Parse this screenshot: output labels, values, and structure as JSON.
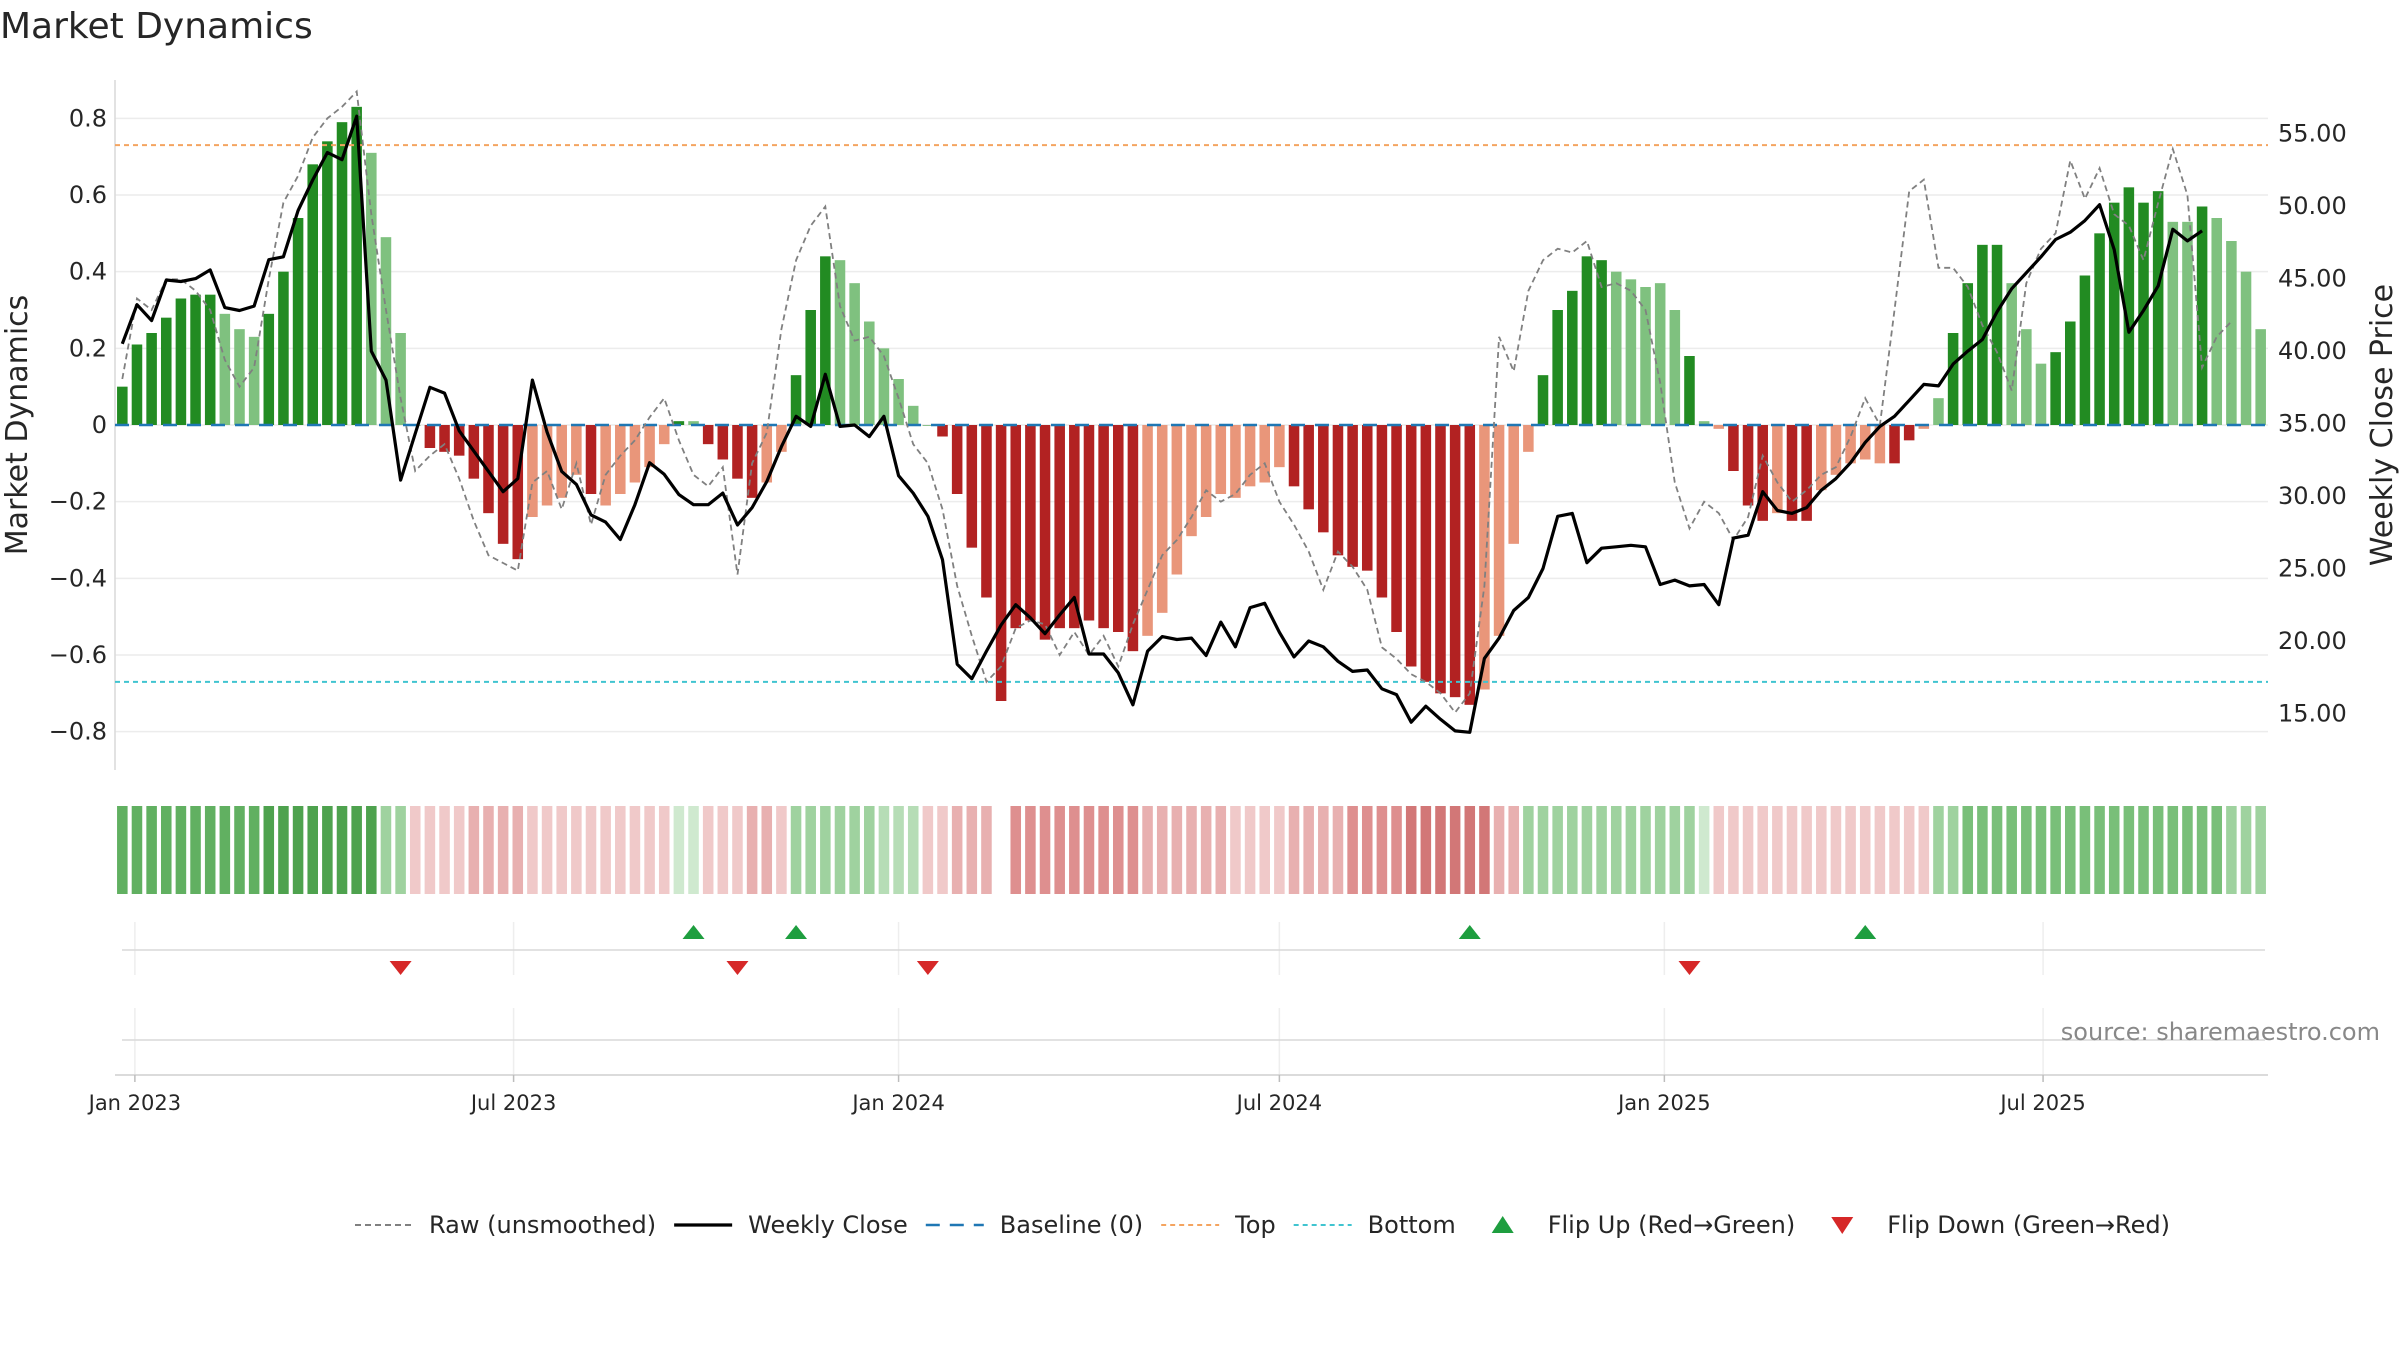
{
  "title": "Market Dynamics",
  "source": "source: sharemaestro.com",
  "colors": {
    "strong_green": "#228b22",
    "light_green": "#7fc17f",
    "strong_red": "#b22222",
    "light_red": "#e9967a",
    "raw": "#808080",
    "close": "#000000",
    "baseline": "#1f77b4",
    "top": "#f4a460",
    "bottom": "#40c4d0",
    "flip_up": "#1e9e3f",
    "flip_down": "#d62828"
  },
  "chart_data": {
    "type": "bar",
    "title": "Market Dynamics",
    "ylabel": "Market Dynamics",
    "y2label": "Weekly Close Price",
    "ylim": [
      -0.9,
      0.9
    ],
    "y2lim": [
      11.1,
      58.7
    ],
    "yticks": [
      "0.8",
      "0.6",
      "0.4",
      "0.2",
      "0",
      "−0.2",
      "−0.4",
      "−0.6",
      "−0.8"
    ],
    "y2ticks": [
      "55.00",
      "50.00",
      "45.00",
      "40.00",
      "35.00",
      "30.00",
      "25.00",
      "20.00",
      "15.00"
    ],
    "xticks": [
      "Jan 2023",
      "Jul 2023",
      "Jan 2024",
      "Jul 2024",
      "Jan 2025",
      "Jul 2025"
    ],
    "xtick_dates": [
      "2023-01-01",
      "2023-07-01",
      "2024-01-01",
      "2024-07-01",
      "2025-01-01",
      "2025-07-01"
    ],
    "x_start": "2022-12-26",
    "week_dates_rule": "weekly, starting at x_start",
    "top_level": 0.73,
    "bottom_level": -0.67,
    "baseline_level": 0,
    "dynamics": [
      0.1,
      0.21,
      0.24,
      0.28,
      0.33,
      0.34,
      0.34,
      0.29,
      0.25,
      0.23,
      0.29,
      0.4,
      0.54,
      0.68,
      0.74,
      0.79,
      0.83,
      0.71,
      0.49,
      0.24,
      0,
      -0.06,
      -0.07,
      -0.08,
      -0.14,
      -0.23,
      -0.31,
      -0.35,
      -0.24,
      -0.21,
      -0.19,
      -0.13,
      -0.18,
      -0.21,
      -0.18,
      -0.15,
      -0.11,
      -0.05,
      0.01,
      0.01,
      -0.05,
      -0.09,
      -0.14,
      -0.19,
      -0.15,
      -0.07,
      0.13,
      0.3,
      0.44,
      0.43,
      0.37,
      0.27,
      0.2,
      0.12,
      0.05,
      0,
      -0.03,
      -0.18,
      -0.32,
      -0.45,
      -0.72,
      -0.53,
      -0.51,
      -0.56,
      -0.53,
      -0.53,
      -0.51,
      -0.53,
      -0.54,
      -0.59,
      -0.55,
      -0.49,
      -0.39,
      -0.29,
      -0.24,
      -0.18,
      -0.19,
      -0.16,
      -0.15,
      -0.11,
      -0.16,
      -0.22,
      -0.28,
      -0.34,
      -0.37,
      -0.38,
      -0.45,
      -0.54,
      -0.63,
      -0.67,
      -0.7,
      -0.71,
      -0.73,
      -0.69,
      -0.55,
      -0.31,
      -0.07,
      0.13,
      0.3,
      0.35,
      0.44,
      0.43,
      0.4,
      0.38,
      0.36,
      0.37,
      0.3,
      0.18,
      0.01,
      -0.01,
      -0.12,
      -0.21,
      -0.25,
      -0.23,
      -0.25,
      -0.25,
      -0.17,
      -0.13,
      -0.1,
      -0.09,
      -0.1,
      -0.1,
      -0.04,
      -0.01,
      0.07,
      0.24,
      0.37,
      0.47,
      0.47,
      0.37,
      0.25,
      0.16,
      0.19,
      0.27,
      0.39,
      0.5,
      0.58,
      0.62,
      0.58,
      0.61,
      0.53,
      0.53,
      0.57,
      0.54,
      0.48,
      0.4,
      0.25
    ],
    "dynamics_shade": [
      "s",
      "s",
      "s",
      "s",
      "s",
      "s",
      "s",
      "l",
      "l",
      "l",
      "s",
      "s",
      "s",
      "s",
      "s",
      "s",
      "s",
      "l",
      "l",
      "l",
      "s",
      "s",
      "s",
      "s",
      "s",
      "s",
      "s",
      "s",
      "l",
      "l",
      "l",
      "l",
      "s",
      "l",
      "l",
      "l",
      "l",
      "l",
      "s",
      "l",
      "s",
      "s",
      "s",
      "s",
      "l",
      "l",
      "s",
      "s",
      "s",
      "l",
      "l",
      "l",
      "l",
      "l",
      "l",
      "s",
      "s",
      "s",
      "s",
      "s",
      "s",
      "s",
      "s",
      "s",
      "s",
      "s",
      "s",
      "s",
      "s",
      "s",
      "l",
      "l",
      "l",
      "l",
      "l",
      "l",
      "l",
      "l",
      "l",
      "l",
      "s",
      "s",
      "s",
      "s",
      "s",
      "s",
      "s",
      "s",
      "s",
      "s",
      "s",
      "s",
      "s",
      "l",
      "l",
      "l",
      "l",
      "s",
      "s",
      "s",
      "s",
      "s",
      "l",
      "l",
      "l",
      "l",
      "l",
      "s",
      "l",
      "l",
      "s",
      "s",
      "s",
      "l",
      "s",
      "s",
      "l",
      "l",
      "l",
      "l",
      "l",
      "s",
      "s",
      "l",
      "l",
      "s",
      "s",
      "s",
      "s",
      "l",
      "l",
      "l",
      "s",
      "s",
      "s",
      "s",
      "s",
      "s",
      "s",
      "s",
      "l",
      "l",
      "s",
      "l",
      "l",
      "l",
      "l"
    ],
    "raw": [
      0.12,
      0.33,
      0.3,
      0.38,
      0.38,
      0.35,
      0.3,
      0.17,
      0.1,
      0.15,
      0.38,
      0.58,
      0.65,
      0.75,
      0.8,
      0.83,
      0.87,
      0.55,
      0.3,
      0.07,
      -0.12,
      -0.08,
      -0.05,
      -0.14,
      -0.25,
      -0.34,
      -0.36,
      -0.38,
      -0.15,
      -0.12,
      -0.22,
      -0.1,
      -0.26,
      -0.13,
      -0.08,
      -0.04,
      0.02,
      0.07,
      -0.04,
      -0.13,
      -0.16,
      -0.11,
      -0.39,
      -0.1,
      -0.02,
      0.25,
      0.43,
      0.52,
      0.57,
      0.31,
      0.22,
      0.23,
      0.18,
      0.07,
      -0.05,
      -0.1,
      -0.22,
      -0.42,
      -0.55,
      -0.67,
      -0.63,
      -0.53,
      -0.51,
      -0.52,
      -0.6,
      -0.54,
      -0.6,
      -0.55,
      -0.63,
      -0.52,
      -0.43,
      -0.34,
      -0.3,
      -0.24,
      -0.17,
      -0.2,
      -0.18,
      -0.13,
      -0.1,
      -0.2,
      -0.26,
      -0.33,
      -0.43,
      -0.33,
      -0.37,
      -0.43,
      -0.58,
      -0.61,
      -0.65,
      -0.67,
      -0.7,
      -0.75,
      -0.7,
      -0.42,
      0.23,
      0.14,
      0.35,
      0.43,
      0.46,
      0.45,
      0.48,
      0.36,
      0.37,
      0.35,
      0.3,
      0.11,
      -0.15,
      -0.27,
      -0.2,
      -0.23,
      -0.3,
      -0.24,
      -0.08,
      -0.15,
      -0.2,
      -0.17,
      -0.13,
      -0.11,
      -0.03,
      0.07,
      0.0,
      0.3,
      0.61,
      0.64,
      0.41,
      0.41,
      0.36,
      0.26,
      0.19,
      0.09,
      0.37,
      0.46,
      0.5,
      0.69,
      0.59,
      0.67,
      0.55,
      0.52,
      0.43,
      0.58,
      0.72,
      0.6,
      0.15,
      0.23,
      0.27
    ],
    "close": [
      40.5,
      43.2,
      42.1,
      44.9,
      44.8,
      45.0,
      45.6,
      43.0,
      42.8,
      43.1,
      46.3,
      46.5,
      49.7,
      51.8,
      53.7,
      53.2,
      56.2,
      40.0,
      38.0,
      31.1,
      34.3,
      37.5,
      37.1,
      34.5,
      33.1,
      31.7,
      30.3,
      31.2,
      38.0,
      34.4,
      31.7,
      30.8,
      28.7,
      28.2,
      27.0,
      29.4,
      32.3,
      31.5,
      30.1,
      29.4,
      29.4,
      30.2,
      28.0,
      29.2,
      31.0,
      33.4,
      35.5,
      34.8,
      38.4,
      34.8,
      34.9,
      34.1,
      35.5,
      31.4,
      30.2,
      28.6,
      25.6,
      18.4,
      17.4,
      19.3,
      21.1,
      22.5,
      21.6,
      20.5,
      21.8,
      23.0,
      19.1,
      19.1,
      17.8,
      15.6,
      19.3,
      20.3,
      20.1,
      20.2,
      19.0,
      21.3,
      19.6,
      22.3,
      22.6,
      20.6,
      18.9,
      20.0,
      19.6,
      18.6,
      17.9,
      18.0,
      16.7,
      16.3,
      14.4,
      15.5,
      14.6,
      13.8,
      13.7,
      18.8,
      20.2,
      22.1,
      23.0,
      25.0,
      28.6,
      28.8,
      25.4,
      26.4,
      26.5,
      26.6,
      26.5,
      23.9,
      24.2,
      23.8,
      23.9,
      22.5,
      27.1,
      27.3,
      30.3,
      29.0,
      28.8,
      29.2,
      30.4,
      31.2,
      32.3,
      33.7,
      34.8,
      35.5,
      36.6,
      37.7,
      37.6,
      39.1,
      40.0,
      40.8,
      42.7,
      44.3,
      45.4,
      46.5,
      47.7,
      48.2,
      49.0,
      50.1,
      47.0,
      41.3,
      42.8,
      44.5,
      48.4,
      47.6,
      48.3
    ]
  },
  "bands": {
    "colors": [
      "#61b061",
      "#61b061",
      "#61b061",
      "#61b061",
      "#61b061",
      "#61b061",
      "#61b061",
      "#61b061",
      "#61b061",
      "#61b061",
      "#4ea24e",
      "#4ea24e",
      "#4ea24e",
      "#4ea24e",
      "#4ea24e",
      "#4ea24e",
      "#4ea24e",
      "#4ea24e",
      "#9fd29f",
      "#9fd29f",
      "#f0c9c9",
      "#f0c9c9",
      "#f0c9c9",
      "#f0c9c9",
      "#e8b0b0",
      "#e8b0b0",
      "#e8b0b0",
      "#e8b0b0",
      "#f0c9c9",
      "#f0c9c9",
      "#f0c9c9",
      "#f0c9c9",
      "#f0c9c9",
      "#f0c9c9",
      "#f0c9c9",
      "#f0c9c9",
      "#f0c9c9",
      "#f0c9c9",
      "#cfe9cf",
      "#cfe9cf",
      "#f0c9c9",
      "#f0c9c9",
      "#f0c9c9",
      "#e8b0b0",
      "#e8b0b0",
      "#f0c9c9",
      "#9fd29f",
      "#9fd29f",
      "#9fd29f",
      "#9fd29f",
      "#9fd29f",
      "#9fd29f",
      "#b6ddb6",
      "#b6ddb6",
      "#b6ddb6",
      "#f0c9c9",
      "#f0c9c9",
      "#e8b0b0",
      "#e8b0b0",
      "#e8b0b0",
      "#ffffff",
      "#de8f8f",
      "#de8f8f",
      "#de8f8f",
      "#de8f8f",
      "#de8f8f",
      "#de8f8f",
      "#de8f8f",
      "#de8f8f",
      "#de8f8f",
      "#e8b0b0",
      "#e8b0b0",
      "#e8b0b0",
      "#e8b0b0",
      "#e8b0b0",
      "#e8b0b0",
      "#f0c9c9",
      "#f0c9c9",
      "#f0c9c9",
      "#f0c9c9",
      "#e8b0b0",
      "#e8b0b0",
      "#e8b0b0",
      "#e8b0b0",
      "#de8f8f",
      "#de8f8f",
      "#de8f8f",
      "#de8f8f",
      "#d27777",
      "#d27777",
      "#d27777",
      "#d27777",
      "#d27777",
      "#d27777",
      "#e8b0b0",
      "#e8b0b0",
      "#9fd29f",
      "#9fd29f",
      "#9fd29f",
      "#9fd29f",
      "#9fd29f",
      "#9fd29f",
      "#9fd29f",
      "#9fd29f",
      "#9fd29f",
      "#9fd29f",
      "#9fd29f",
      "#9fd29f",
      "#cfe9cf",
      "#f0c9c9",
      "#f0c9c9",
      "#f0c9c9",
      "#f0c9c9",
      "#f0c9c9",
      "#f0c9c9",
      "#f0c9c9",
      "#f0c9c9",
      "#f0c9c9",
      "#f0c9c9",
      "#f0c9c9",
      "#f0c9c9",
      "#f0c9c9",
      "#f0c9c9",
      "#f0c9c9",
      "#9fd29f",
      "#9fd29f",
      "#79bf79",
      "#79bf79",
      "#79bf79",
      "#79bf79",
      "#79bf79",
      "#79bf79",
      "#79bf79",
      "#79bf79",
      "#79bf79",
      "#79bf79",
      "#79bf79",
      "#79bf79",
      "#79bf79",
      "#79bf79",
      "#79bf79",
      "#79bf79",
      "#79bf79",
      "#79bf79",
      "#9fd29f",
      "#9fd29f",
      "#9fd29f"
    ]
  },
  "flips": {
    "up_dates": [
      "2023-09-25",
      "2023-11-13",
      "2024-09-30",
      "2025-04-07"
    ],
    "down_dates": [
      "2023-05-08",
      "2023-10-16",
      "2024-01-15",
      "2025-01-13"
    ]
  },
  "legend": [
    {
      "key": "raw",
      "label": "Raw (unsmoothed)",
      "style": "dashed"
    },
    {
      "key": "close",
      "label": "Weekly Close",
      "style": "solid"
    },
    {
      "key": "baseline",
      "label": "Baseline (0)",
      "style": "longdash"
    },
    {
      "key": "top",
      "label": "Top",
      "style": "dotted"
    },
    {
      "key": "bottom",
      "label": "Bottom",
      "style": "dotted"
    },
    {
      "key": "flip_up",
      "label": "Flip Up (Red→Green)",
      "style": "triangle-up"
    },
    {
      "key": "flip_down",
      "label": "Flip Down (Green→Red)",
      "style": "triangle-down"
    }
  ]
}
